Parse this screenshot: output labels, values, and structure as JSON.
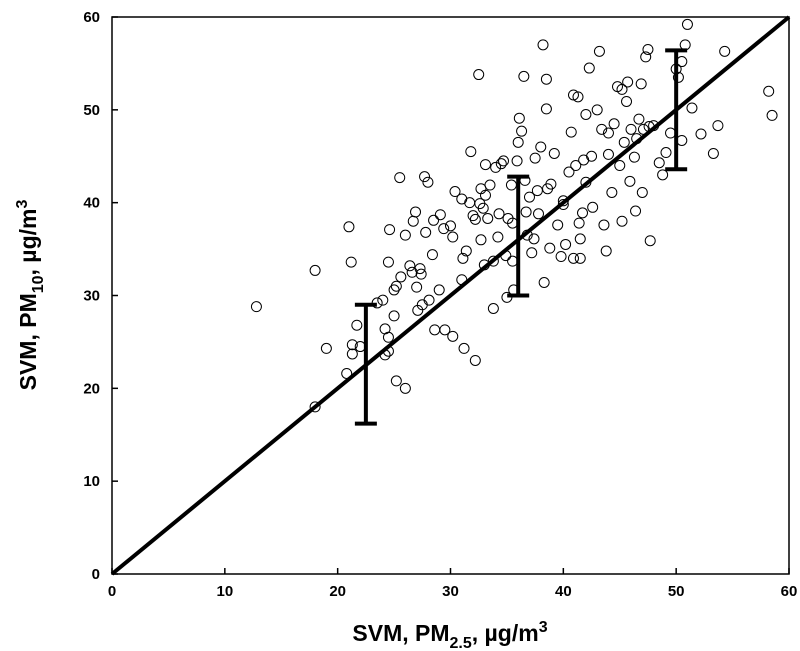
{
  "chart_data": {
    "type": "scatter",
    "xlabel": [
      "SVM, PM",
      "2.5",
      ", µg/m",
      "3"
    ],
    "ylabel": [
      "SVM, PM",
      "10",
      ", µg/m",
      "3"
    ],
    "xlim": [
      0,
      60
    ],
    "ylim": [
      0,
      60
    ],
    "xticks": [
      0,
      10,
      20,
      30,
      40,
      50,
      60
    ],
    "yticks": [
      0,
      10,
      20,
      30,
      40,
      50,
      60
    ],
    "grid": false,
    "series": [
      {
        "type": "scatter",
        "color": "#000000",
        "x": [
          12.8,
          18,
          18,
          21,
          21.2,
          20.8,
          21.3,
          21.3,
          19,
          21.7,
          23.5,
          24,
          24.2,
          24.5,
          24.2,
          24.5,
          24.5,
          24.6,
          25.2,
          25,
          25.5,
          25,
          25.2,
          26,
          25.6,
          26,
          26.4,
          26.6,
          26.7,
          26.9,
          27.1,
          27.3,
          27.4,
          27.5,
          27.8,
          27.7,
          28,
          28.1,
          28.4,
          28.5,
          28.6,
          29,
          29.1,
          29.4,
          29.5,
          30,
          30.2,
          30.4,
          30.2,
          31,
          31,
          31.1,
          31.2,
          31.4,
          31.7,
          31.8,
          32,
          32.2,
          32.2,
          32.5,
          32.6,
          32.7,
          32.7,
          32.9,
          33.1,
          33.1,
          33.3,
          33.5,
          33.8,
          33.8,
          34,
          34.2,
          34.3,
          34.5,
          34.7,
          34.9,
          35,
          35.1,
          35.4,
          35.5,
          35.5,
          35.6,
          35.9,
          36,
          36.1,
          36.3,
          36.5,
          36.6,
          36.7,
          36.8,
          37,
          37.2,
          37.4,
          37.5,
          37.7,
          37.8,
          38,
          38.2,
          38.3,
          38.5,
          38.5,
          38.6,
          38.8,
          38.9,
          39.2,
          39.5,
          39.8,
          40,
          40.2,
          40.5,
          40.7,
          40.9,
          40.9,
          41.1,
          41.3,
          41.4,
          41.5,
          41.5,
          41.7,
          41.8,
          42,
          42,
          42.3,
          42.5,
          42.6,
          43,
          43.2,
          43.4,
          43.6,
          43.8,
          44,
          44.3,
          44.5,
          44.8,
          45,
          45.2,
          45.2,
          45.4,
          45.6,
          45.7,
          45.9,
          46,
          46.3,
          46.4,
          46.5,
          46.7,
          46.9,
          47,
          47.1,
          47.3,
          47.5,
          47.6,
          47.7,
          48,
          48.5,
          48.8,
          49.1,
          49.5,
          50,
          50.2,
          50.5,
          50.8,
          51,
          51.4,
          52.2,
          53.3,
          53.7,
          54.3,
          58.2,
          58.5,
          50.5,
          44,
          40,
          33,
          27,
          22
        ],
        "values": [
          28.8,
          32.7,
          18,
          37.4,
          33.6,
          21.6,
          24.7,
          23.7,
          24.3,
          26.8,
          29.2,
          29.5,
          26.4,
          24,
          23.6,
          25.5,
          33.6,
          37.1,
          31,
          30.6,
          42.7,
          27.8,
          20.8,
          20,
          32,
          36.5,
          33.2,
          32.5,
          38,
          39,
          28.4,
          32.9,
          32.3,
          29,
          36.8,
          42.8,
          42.2,
          29.5,
          34.4,
          38.1,
          26.3,
          30.6,
          38.7,
          37.2,
          26.3,
          37.5,
          36.3,
          41.2,
          25.6,
          40.4,
          31.7,
          34,
          24.3,
          34.8,
          40,
          45.5,
          38.6,
          38.2,
          23,
          53.8,
          39.9,
          41.5,
          36,
          39.4,
          40.8,
          44.1,
          38.3,
          41.9,
          33.7,
          28.6,
          43.8,
          36.3,
          38.8,
          44.2,
          44.5,
          34.3,
          29.8,
          38.3,
          41.9,
          37.8,
          33.7,
          30.6,
          44.5,
          46.5,
          49.1,
          47.7,
          53.6,
          42.4,
          39,
          36.5,
          40.6,
          34.6,
          36.1,
          44.8,
          41.3,
          38.8,
          46,
          57,
          31.4,
          53.3,
          50.1,
          41.5,
          35.1,
          42,
          45.3,
          37.6,
          34.2,
          40.2,
          35.5,
          43.3,
          47.6,
          51.6,
          34,
          44,
          51.4,
          37.8,
          36.1,
          34,
          38.9,
          44.6,
          42.2,
          49.5,
          54.5,
          45,
          39.5,
          50,
          56.3,
          47.9,
          37.6,
          34.8,
          45.2,
          41.1,
          48.5,
          52.5,
          44,
          52.2,
          38,
          46.5,
          50.9,
          53,
          42.3,
          47.9,
          44.9,
          39.1,
          46.9,
          49,
          52.8,
          41.1,
          47.9,
          55.7,
          56.5,
          48.2,
          35.9,
          48.3,
          44.3,
          43,
          45.4,
          47.5,
          54.4,
          53.5,
          55.2,
          57,
          59.2,
          50.2,
          47.4,
          45.3,
          48.3,
          56.3,
          52,
          49.4,
          46.7,
          47.5,
          39.8,
          33.3,
          30.9,
          24.5
        ]
      },
      {
        "type": "errorbar",
        "color": "#000000",
        "x": [
          22.5,
          36,
          50
        ],
        "values": [
          22.6,
          36.4,
          50.0
        ],
        "err": [
          6.4,
          6.4,
          6.4
        ]
      },
      {
        "type": "line",
        "color": "#000000",
        "x": [
          0,
          60
        ],
        "values": [
          0,
          60
        ]
      }
    ]
  }
}
